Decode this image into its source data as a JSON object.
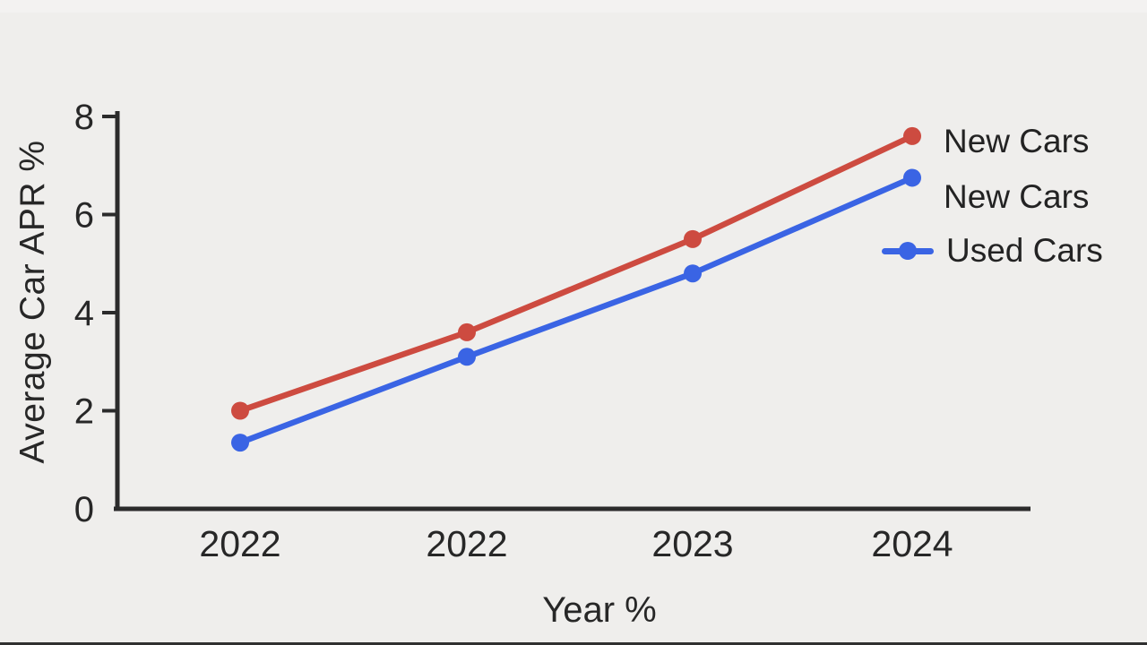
{
  "chart_data": {
    "type": "line",
    "title": "",
    "categories": [
      "2022",
      "2022",
      "2023",
      "2024"
    ],
    "series": [
      {
        "name": "New Cars",
        "color": "#cd4b40",
        "values": [
          2.0,
          3.6,
          5.5,
          7.6
        ]
      },
      {
        "name": "Used Cars",
        "color": "#3a64e4",
        "values": [
          1.35,
          3.1,
          4.8,
          6.75
        ]
      }
    ],
    "xlabel": "Year %",
    "ylabel": "Average Car APR %",
    "ylim": [
      0,
      8
    ],
    "yticks": [
      "0",
      "2",
      "4",
      "6",
      "8"
    ],
    "grid": false,
    "legend_position": "right-of-line-ends",
    "legend_entries": [
      {
        "label": "New Cars",
        "swatch": "none"
      },
      {
        "label": "New Cars",
        "swatch": "none"
      },
      {
        "label": "Used Cars",
        "swatch": "line-dot"
      }
    ]
  },
  "colors": {
    "background": "#efeeec",
    "axis": "#2b2b2b",
    "text": "#272727",
    "new_cars_red": "#cd4b40",
    "used_cars_blue": "#3a64e4"
  }
}
